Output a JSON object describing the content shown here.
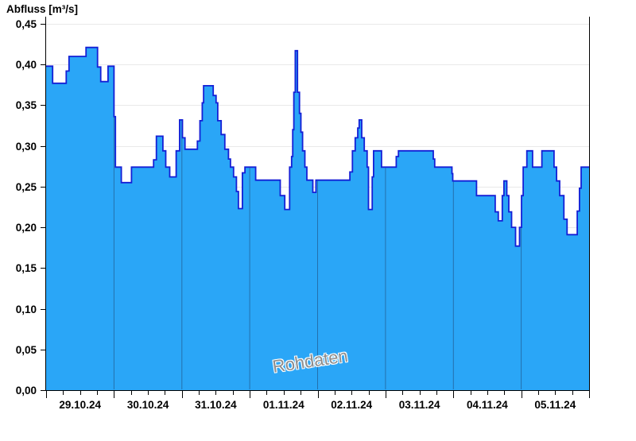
{
  "title": "Abfluss [m³/s]",
  "watermark": "Rohdaten",
  "colors": {
    "background": "#ffffff",
    "fill": "#2aa6f7",
    "stroke": "#141fd6",
    "grid": "#e9e9e9",
    "axis": "#000000",
    "day_line": "#2470ad",
    "watermark": "#8c8c8c",
    "text": "#000000"
  },
  "chart_data": {
    "type": "area",
    "title": "Abfluss [m³/s]",
    "ylabel": "Abfluss [m³/s]",
    "xlabel": "",
    "legend": "none",
    "grid": "horizontal",
    "step": true,
    "ylim": [
      0,
      0.45
    ],
    "y_tick_step": 0.05,
    "y_tick_labels": [
      "0,00",
      "0,05",
      "0,10",
      "0,15",
      "0,20",
      "0,25",
      "0,30",
      "0,35",
      "0,40",
      "0,45"
    ],
    "x_day_labels": [
      "29.10.24",
      "30.10.24",
      "31.10.24",
      "01.11.24",
      "02.11.24",
      "03.11.24",
      "04.11.24",
      "05.11.24"
    ],
    "x_range_hours": [
      0,
      192
    ],
    "x_major_tick_hours": 24,
    "x_minor_tick_hours": 6,
    "time_origin": "29.10.24 00:00",
    "series": [
      {
        "name": "Rohdaten",
        "unit": "m³/s",
        "points": [
          [
            0,
            0.398
          ],
          [
            2.3,
            0.377
          ],
          [
            7.1,
            0.392
          ],
          [
            8.1,
            0.41
          ],
          [
            14.1,
            0.421
          ],
          [
            18.2,
            0.397
          ],
          [
            19.3,
            0.379
          ],
          [
            21.9,
            0.398
          ],
          [
            24,
            0.336
          ],
          [
            24.5,
            0.274
          ],
          [
            26.6,
            0.255
          ],
          [
            30.2,
            0.274
          ],
          [
            38,
            0.283
          ],
          [
            39,
            0.312
          ],
          [
            41.3,
            0.294
          ],
          [
            42.3,
            0.274
          ],
          [
            43.7,
            0.262
          ],
          [
            46,
            0.294
          ],
          [
            47.2,
            0.332
          ],
          [
            48.2,
            0.31
          ],
          [
            49.1,
            0.296
          ],
          [
            53.5,
            0.306
          ],
          [
            54.4,
            0.331
          ],
          [
            55.2,
            0.353
          ],
          [
            55.7,
            0.374
          ],
          [
            59.1,
            0.362
          ],
          [
            60.1,
            0.353
          ],
          [
            60.7,
            0.331
          ],
          [
            61.9,
            0.314
          ],
          [
            63.2,
            0.296
          ],
          [
            64.5,
            0.284
          ],
          [
            65.2,
            0.274
          ],
          [
            66.3,
            0.262
          ],
          [
            67.3,
            0.244
          ],
          [
            68,
            0.223
          ],
          [
            69.4,
            0.267
          ],
          [
            70.3,
            0.274
          ],
          [
            74.1,
            0.258
          ],
          [
            82.8,
            0.239
          ],
          [
            84.4,
            0.222
          ],
          [
            86.1,
            0.274
          ],
          [
            86.8,
            0.287
          ],
          [
            87.2,
            0.32
          ],
          [
            87.6,
            0.366
          ],
          [
            88.1,
            0.417
          ],
          [
            88.9,
            0.366
          ],
          [
            89.6,
            0.34
          ],
          [
            90.1,
            0.317
          ],
          [
            90.7,
            0.294
          ],
          [
            91.5,
            0.274
          ],
          [
            92.2,
            0.258
          ],
          [
            94.3,
            0.243
          ],
          [
            95.4,
            0.258
          ],
          [
            107.4,
            0.268
          ],
          [
            108.3,
            0.294
          ],
          [
            109.3,
            0.31
          ],
          [
            110.2,
            0.322
          ],
          [
            110.7,
            0.332
          ],
          [
            111.6,
            0.31
          ],
          [
            112.5,
            0.294
          ],
          [
            113.5,
            0.274
          ],
          [
            114,
            0.222
          ],
          [
            115.3,
            0.262
          ],
          [
            115.8,
            0.294
          ],
          [
            118.6,
            0.274
          ],
          [
            123.8,
            0.287
          ],
          [
            124.6,
            0.294
          ],
          [
            136.9,
            0.284
          ],
          [
            137.4,
            0.274
          ],
          [
            143.5,
            0.266
          ],
          [
            143.8,
            0.257
          ],
          [
            152.2,
            0.239
          ],
          [
            158.8,
            0.219
          ],
          [
            159.9,
            0.208
          ],
          [
            161.3,
            0.239
          ],
          [
            161.9,
            0.257
          ],
          [
            162.9,
            0.239
          ],
          [
            163.6,
            0.219
          ],
          [
            164.6,
            0.2
          ],
          [
            166,
            0.177
          ],
          [
            167.4,
            0.2
          ],
          [
            168.1,
            0.239
          ],
          [
            168.7,
            0.274
          ],
          [
            170,
            0.294
          ],
          [
            172,
            0.274
          ],
          [
            175.3,
            0.294
          ],
          [
            179.6,
            0.274
          ],
          [
            180.5,
            0.257
          ],
          [
            181.6,
            0.239
          ],
          [
            183.1,
            0.21
          ],
          [
            184.2,
            0.191
          ],
          [
            187.8,
            0.22
          ],
          [
            188.6,
            0.248
          ],
          [
            189.2,
            0.274
          ]
        ]
      }
    ]
  }
}
